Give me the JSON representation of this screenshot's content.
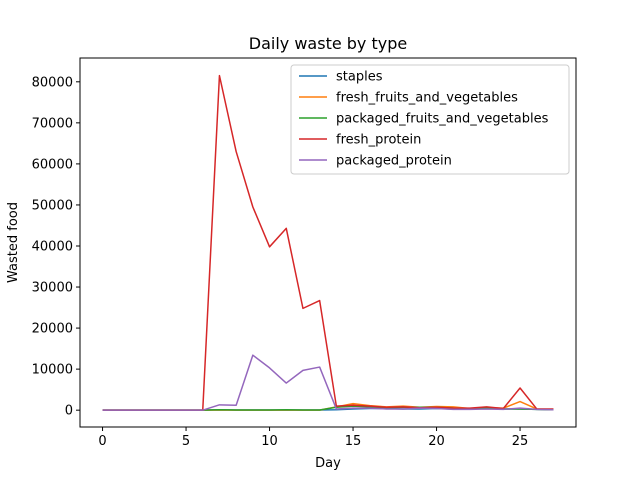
{
  "chart_data": {
    "type": "line",
    "title": "Daily waste by type",
    "xlabel": "Day",
    "ylabel": "Wasted food",
    "xlim": [
      -1.35,
      28.35
    ],
    "ylim": [
      -4100,
      85800
    ],
    "xticks": [
      0,
      5,
      10,
      15,
      20,
      25
    ],
    "yticks": [
      0,
      10000,
      20000,
      30000,
      40000,
      50000,
      60000,
      70000,
      80000
    ],
    "grid": false,
    "legend_position": "top-right",
    "x": [
      0,
      1,
      2,
      3,
      4,
      5,
      6,
      7,
      8,
      9,
      10,
      11,
      12,
      13,
      14,
      15,
      16,
      17,
      18,
      19,
      20,
      21,
      22,
      23,
      24,
      25,
      26,
      27
    ],
    "series": [
      {
        "name": "staples",
        "color": "#1f77b4",
        "values": [
          0,
          0,
          0,
          0,
          0,
          0,
          0,
          100,
          50,
          50,
          50,
          50,
          50,
          50,
          100,
          300,
          400,
          400,
          300,
          300,
          400,
          300,
          300,
          400,
          300,
          300,
          200,
          100
        ]
      },
      {
        "name": "fresh_fruits_and_vegetables",
        "color": "#ff7f0e",
        "values": [
          0,
          0,
          0,
          0,
          0,
          0,
          0,
          0,
          0,
          0,
          0,
          0,
          0,
          0,
          800,
          1600,
          1100,
          800,
          1000,
          700,
          900,
          800,
          400,
          600,
          500,
          2100,
          300,
          200
        ]
      },
      {
        "name": "packaged_fruits_and_vegetables",
        "color": "#2ca02c",
        "values": [
          0,
          0,
          0,
          0,
          0,
          0,
          0,
          100,
          50,
          50,
          50,
          100,
          50,
          50,
          700,
          1000,
          800,
          600,
          700,
          700,
          700,
          500,
          400,
          500,
          300,
          300,
          200,
          100
        ]
      },
      {
        "name": "fresh_protein",
        "color": "#d62728",
        "values": [
          0,
          0,
          0,
          0,
          0,
          0,
          0,
          81500,
          63000,
          49500,
          39800,
          44300,
          24800,
          26700,
          1000,
          1200,
          1000,
          700,
          800,
          600,
          700,
          500,
          500,
          800,
          400,
          5400,
          300,
          300
        ]
      },
      {
        "name": "packaged_protein",
        "color": "#9467bd",
        "values": [
          0,
          0,
          0,
          0,
          0,
          0,
          0,
          1300,
          1200,
          13400,
          10300,
          6600,
          9700,
          10500,
          300,
          500,
          500,
          300,
          300,
          500,
          400,
          200,
          200,
          300,
          200,
          500,
          200,
          100
        ]
      }
    ]
  }
}
